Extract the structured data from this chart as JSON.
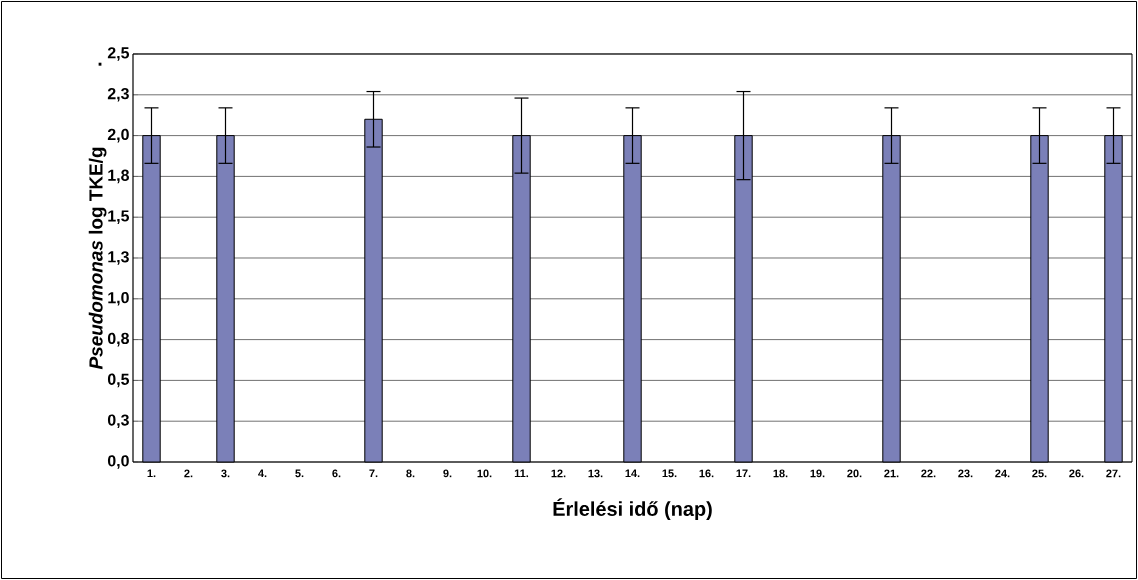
{
  "chart_data": {
    "type": "bar",
    "xlabel": "Érlelési idő (nap)",
    "ylabel": "*Pseudomonas* log TKE/g",
    "annotations": [
      "."
    ],
    "categories": [
      "1.",
      "2.",
      "3.",
      "4.",
      "5.",
      "6.",
      "7.",
      "8.",
      "9.",
      "10.",
      "11.",
      "12.",
      "13.",
      "14.",
      "15.",
      "16.",
      "17.",
      "18.",
      "19.",
      "20.",
      "21.",
      "22.",
      "23.",
      "24.",
      "25.",
      "26.",
      "27."
    ],
    "values": [
      2.0,
      null,
      2.0,
      null,
      null,
      null,
      2.1,
      null,
      null,
      null,
      2.0,
      null,
      null,
      2.0,
      null,
      null,
      2.0,
      null,
      null,
      null,
      2.0,
      null,
      null,
      null,
      2.0,
      null,
      2.0
    ],
    "errors": [
      0.17,
      null,
      0.17,
      null,
      null,
      null,
      0.17,
      null,
      null,
      null,
      0.23,
      null,
      null,
      0.17,
      null,
      null,
      0.27,
      null,
      null,
      null,
      0.17,
      null,
      null,
      null,
      0.17,
      null,
      0.17
    ],
    "color": "#7b80b8",
    "ylim": [
      0,
      2.5
    ],
    "yticks": [
      {
        "value": 0,
        "label": "0,0"
      },
      {
        "value": 0.25,
        "label": "0,3"
      },
      {
        "value": 0.5,
        "label": "0,5"
      },
      {
        "value": 0.75,
        "label": "0,8"
      },
      {
        "value": 1.0,
        "label": "1,0"
      },
      {
        "value": 1.25,
        "label": "1,3"
      },
      {
        "value": 1.5,
        "label": "1,5"
      },
      {
        "value": 1.75,
        "label": "1,8"
      },
      {
        "value": 2.0,
        "label": "2,0"
      },
      {
        "value": 2.25,
        "label": "2,3"
      },
      {
        "value": 2.5,
        "label": "2,5"
      }
    ],
    "grid": "y"
  }
}
